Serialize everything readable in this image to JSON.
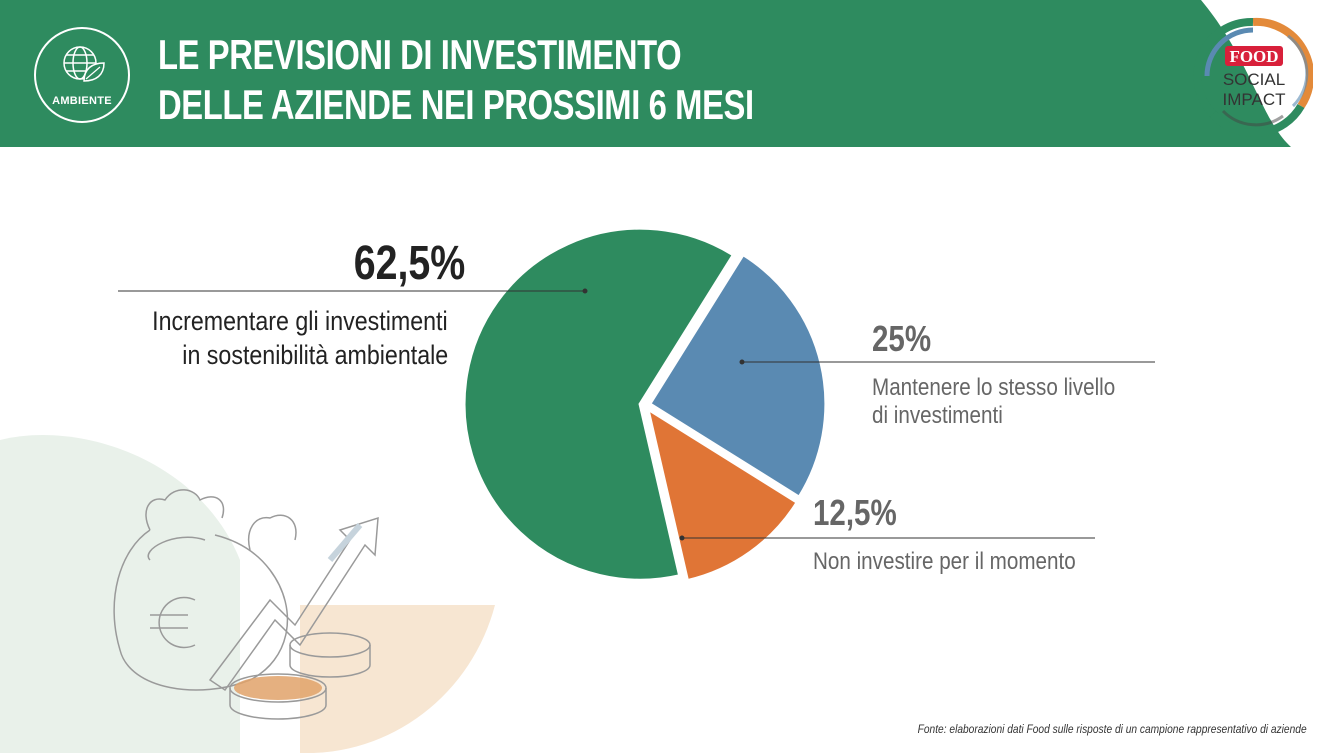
{
  "header": {
    "title_line1": "LE PREVISIONI DI INVESTIMENTO",
    "title_line2": "DELLE AZIENDE NEI PROSSIMI 6 MESI",
    "badge_label": "AMBIENTE"
  },
  "logo": {
    "line1": "FOOD",
    "line2": "SOCIAL",
    "line3": "IMPACT"
  },
  "colors": {
    "brand_green": "#2e8b5f",
    "slice_green": "#2e8b5f",
    "slice_blue": "#5a8ab2",
    "slice_orange": "#e07536",
    "logo_red": "#d8203a",
    "logo_orange": "#e38a3a"
  },
  "chart_data": {
    "type": "pie",
    "slices": [
      {
        "label": "Incrementare gli investimenti in sostenibilità ambientale",
        "value": 62.5,
        "value_label": "62,5%",
        "color": "#2e8b5f"
      },
      {
        "label": "Mantenere lo stesso livello di investimenti",
        "value": 25,
        "value_label": "25%",
        "color": "#5a8ab2"
      },
      {
        "label": "Non investire per il momento",
        "value": 12.5,
        "value_label": "12,5%",
        "color": "#e07536"
      }
    ],
    "labels": {
      "green_pct": "62,5%",
      "green_l1": "Incrementare gli investimenti",
      "green_l2": "in sostenibilità ambientale",
      "blue_pct": "25%",
      "blue_l1": "Mantenere lo stesso livello",
      "blue_l2": "di investimenti",
      "orange_pct": "12,5%",
      "orange_l1": "Non investire per il momento"
    }
  },
  "source": "Fonte: elaborazioni dati Food sulle risposte di un campione rappresentativo di aziende"
}
